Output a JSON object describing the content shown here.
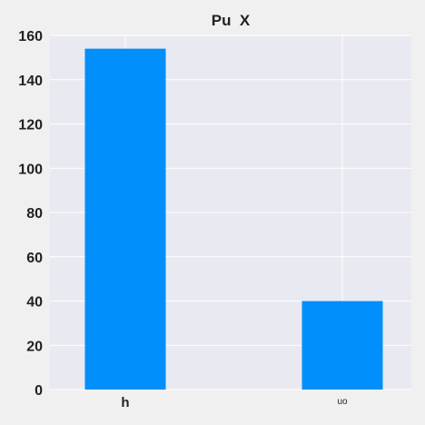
{
  "chart_data": {
    "type": "bar",
    "title": "Pu  X",
    "xlabel": "",
    "ylabel": "",
    "categories": [
      "h",
      "uo"
    ],
    "values": [
      154,
      40
    ],
    "ylim": [
      0,
      160
    ],
    "yticks": [
      0,
      20,
      40,
      60,
      80,
      100,
      120,
      140,
      160
    ],
    "grid": true,
    "colors": {
      "bar": "#008ffb",
      "plot_background": "#e9e9f1",
      "page_background": "#f0f0f0",
      "grid": "#ffffff",
      "text": "#222222"
    }
  }
}
